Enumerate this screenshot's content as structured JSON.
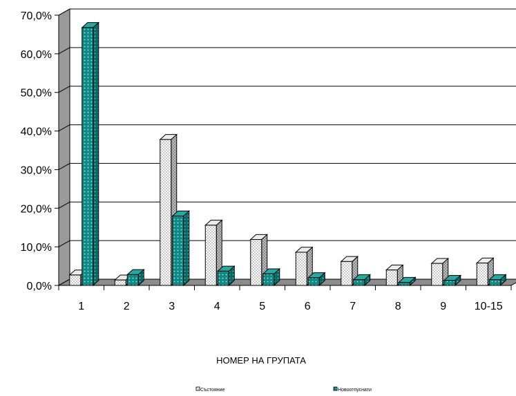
{
  "chart_data": {
    "type": "bar",
    "three_d": true,
    "categories": [
      "1",
      "2",
      "3",
      "4",
      "5",
      "6",
      "7",
      "8",
      "9",
      "10-15"
    ],
    "series": [
      {
        "name": "Състояние",
        "values": [
          2.7,
          1.4,
          37.8,
          15.6,
          11.9,
          8.6,
          6.2,
          4.0,
          5.7,
          5.8
        ],
        "color": "#d9d9d9",
        "pattern": "checker"
      },
      {
        "name": "Новоотпуснати",
        "values": [
          66.8,
          2.8,
          18.0,
          3.7,
          3.0,
          2.0,
          1.5,
          0.8,
          1.3,
          1.5
        ],
        "color": "#008080",
        "pattern": "dots"
      }
    ],
    "xlabel": "НОМЕР НА ГРУПАТА",
    "ylabel": "",
    "ylim": [
      0,
      70
    ],
    "yticks": [
      "0,0%",
      "10,0%",
      "20,0%",
      "30,0%",
      "40,0%",
      "50,0%",
      "60,0%",
      "70,0%"
    ],
    "grid": true,
    "legend_position": "bottom"
  }
}
